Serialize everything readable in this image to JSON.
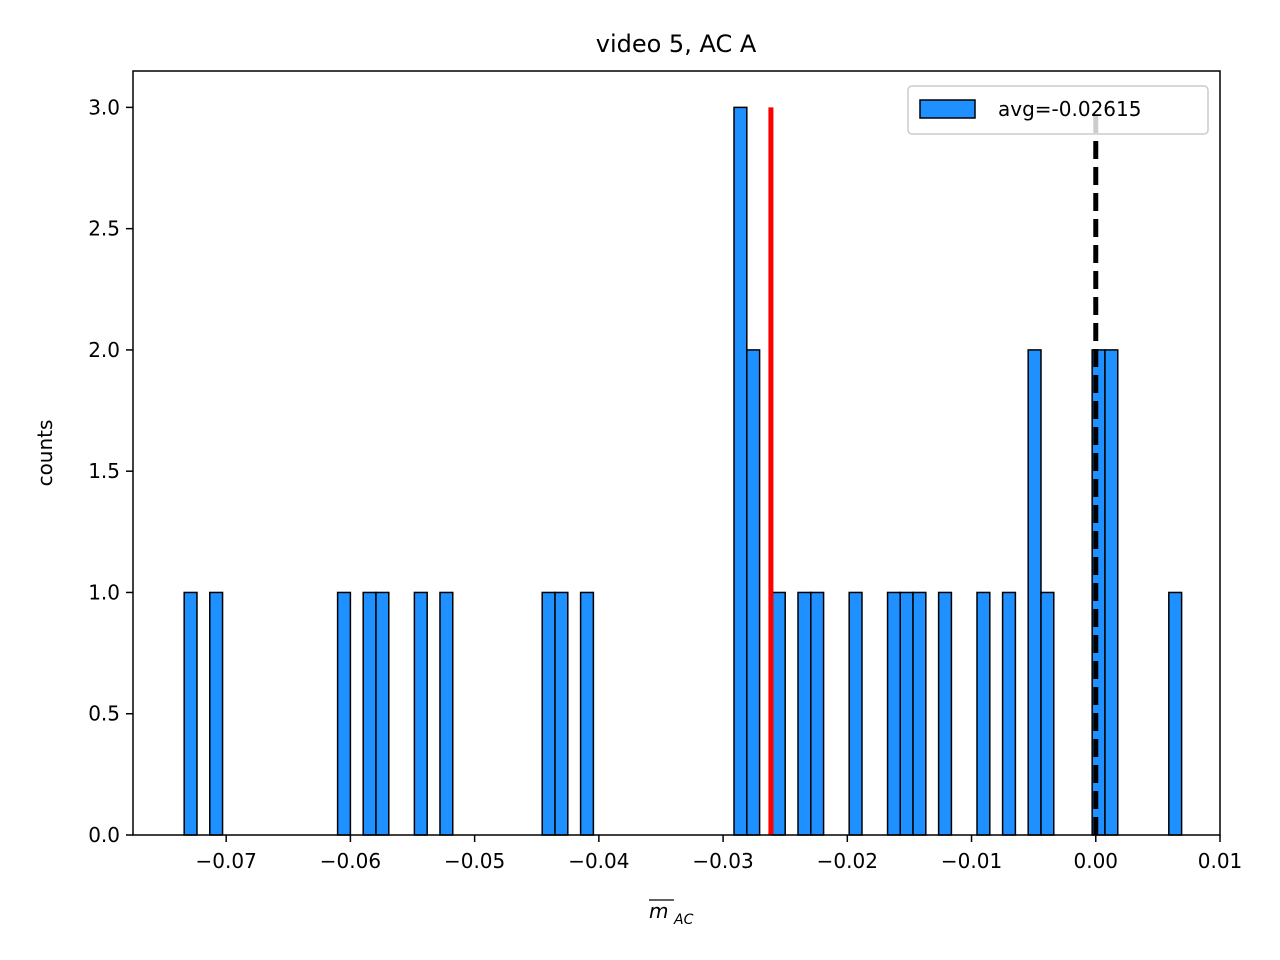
{
  "chart_data": {
    "type": "bar",
    "title": "video 5, AC A",
    "xlabel": "m",
    "xlabel_subscript": "AC",
    "ylabel": "counts",
    "xlim": [
      -0.0775,
      0.01
    ],
    "ylim": [
      0,
      3.15
    ],
    "bin_width": 0.00103,
    "x_ticks": [
      -0.07,
      -0.06,
      -0.05,
      -0.04,
      -0.03,
      -0.02,
      -0.01,
      0.0,
      0.01
    ],
    "x_tick_labels": [
      "−0.07",
      "−0.06",
      "−0.05",
      "−0.04",
      "−0.03",
      "−0.02",
      "−0.01",
      "0.00",
      "0.01"
    ],
    "y_ticks": [
      0.0,
      0.5,
      1.0,
      1.5,
      2.0,
      2.5,
      3.0
    ],
    "y_tick_labels": [
      "0.0",
      "0.5",
      "1.0",
      "1.5",
      "2.0",
      "2.5",
      "3.0"
    ],
    "bins": [
      {
        "left": -0.07338,
        "count": 1
      },
      {
        "left": -0.07132,
        "count": 1
      },
      {
        "left": -0.06103,
        "count": 1
      },
      {
        "left": -0.05897,
        "count": 1
      },
      {
        "left": -0.05794,
        "count": 1
      },
      {
        "left": -0.05485,
        "count": 1
      },
      {
        "left": -0.05279,
        "count": 1
      },
      {
        "left": -0.04456,
        "count": 1
      },
      {
        "left": -0.04353,
        "count": 1
      },
      {
        "left": -0.04147,
        "count": 1
      },
      {
        "left": -0.02912,
        "count": 3
      },
      {
        "left": -0.02809,
        "count": 2
      },
      {
        "left": -0.02603,
        "count": 1
      },
      {
        "left": -0.02397,
        "count": 1
      },
      {
        "left": -0.02294,
        "count": 1
      },
      {
        "left": -0.01985,
        "count": 1
      },
      {
        "left": -0.01676,
        "count": 1
      },
      {
        "left": -0.01574,
        "count": 1
      },
      {
        "left": -0.01471,
        "count": 1
      },
      {
        "left": -0.01265,
        "count": 1
      },
      {
        "left": -0.00956,
        "count": 1
      },
      {
        "left": -0.0075,
        "count": 1
      },
      {
        "left": -0.00544,
        "count": 2
      },
      {
        "left": -0.00441,
        "count": 1
      },
      {
        "left": -0.00853,
        "count": 0
      },
      {
        "left": -0.00029,
        "count": 2
      },
      {
        "left": 0.00074,
        "count": 2
      },
      {
        "left": 0.00588,
        "count": 1
      }
    ],
    "bar_color": "#1e90ff",
    "edge_color": "#000000",
    "mean_line": {
      "x": -0.02615,
      "y_top": 3.0,
      "color": "#ff0000"
    },
    "zero_line": {
      "x": 0.0,
      "y_top": 3.0,
      "color": "#000000",
      "style": "dashed"
    },
    "legend": {
      "label": "avg=-0.02615",
      "position": "top-right"
    }
  }
}
